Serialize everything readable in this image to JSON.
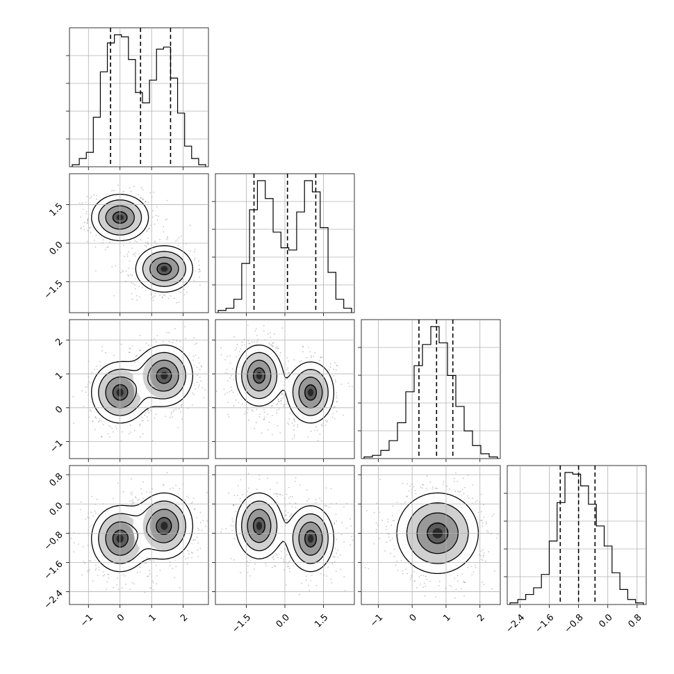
{
  "chart_data": {
    "type": "corner",
    "grid": true,
    "parameters": [
      {
        "range": [
          -1.6,
          2.8
        ],
        "ticks": [
          -1,
          0,
          1,
          2
        ],
        "tick_labels": [
          "−1",
          "0",
          "1",
          "2"
        ]
      },
      {
        "range": [
          -2.7,
          2.7
        ],
        "ticks": [
          -1.5,
          0.0,
          1.5
        ],
        "tick_labels": [
          "−1.5",
          "0.0",
          "1.5"
        ]
      },
      {
        "range": [
          -1.5,
          2.6
        ],
        "ticks": [
          -1,
          0,
          1,
          2
        ],
        "tick_labels": [
          "−1",
          "0",
          "1",
          "2"
        ]
      },
      {
        "range": [
          -2.75,
          1.05
        ],
        "ticks": [
          -2.4,
          -1.6,
          -0.8,
          0.0,
          0.8
        ],
        "tick_labels": [
          "−2.4",
          "−1.6",
          "−0.8",
          "0.0",
          "0.8"
        ]
      }
    ],
    "y_tick_labels_row": {
      "1": {
        "ticks": [
          -1.5,
          0.0,
          1.5
        ],
        "tick_labels": [
          "−1.5",
          "0.0",
          "1.5"
        ]
      },
      "2": {
        "ticks": [
          -1,
          0,
          1,
          2
        ],
        "tick_labels": [
          "−1",
          "0",
          "1",
          "2"
        ]
      },
      "3": {
        "ticks": [
          -2.4,
          -1.6,
          -0.8,
          0.0,
          0.8
        ],
        "tick_labels": [
          "−2.4",
          "−1.6",
          "−0.8",
          "0.0",
          "0.8"
        ]
      }
    },
    "histograms": [
      {
        "quantiles": [
          -0.3,
          0.65,
          1.6
        ],
        "counts": [
          1,
          4,
          7,
          24,
          46,
          60,
          64,
          63,
          52,
          36,
          31,
          42,
          57,
          58,
          43,
          26,
          10,
          4,
          1
        ]
      },
      {
        "quantiles": [
          -1.2,
          0.1,
          1.2
        ],
        "counts": [
          1,
          2,
          6,
          22,
          46,
          59,
          51,
          36,
          29,
          28,
          45,
          59,
          54,
          38,
          18,
          6,
          2
        ]
      },
      {
        "quantiles": [
          0.2,
          0.72,
          1.2
        ],
        "counts": [
          1,
          2,
          5,
          11,
          22,
          41,
          57,
          70,
          81,
          71,
          51,
          32,
          17,
          8,
          3,
          1
        ]
      },
      {
        "quantiles": [
          -1.3,
          -0.8,
          -0.35
        ],
        "counts": [
          1,
          3,
          6,
          10,
          18,
          38,
          61,
          79,
          78,
          71,
          60,
          47,
          35,
          19,
          9,
          3,
          1
        ]
      }
    ],
    "pairs": [
      {
        "row": 1,
        "col": 0,
        "clusters": [
          {
            "mean": [
              0.0,
              1.0
            ],
            "sd": [
              0.45,
              0.45
            ],
            "rho": 0
          },
          {
            "mean": [
              1.4,
              -1.0
            ],
            "sd": [
              0.45,
              0.45
            ],
            "rho": 0
          }
        ]
      },
      {
        "row": 2,
        "col": 0,
        "clusters": [
          {
            "mean": [
              0.0,
              0.45
            ],
            "sd": [
              0.45,
              0.45
            ],
            "rho": 0
          },
          {
            "mean": [
              1.4,
              0.95
            ],
            "sd": [
              0.45,
              0.45
            ],
            "rho": 0
          }
        ]
      },
      {
        "row": 2,
        "col": 1,
        "clusters": [
          {
            "mean": [
              -1.0,
              0.95
            ],
            "sd": [
              0.45,
              0.45
            ],
            "rho": 0
          },
          {
            "mean": [
              1.0,
              0.45
            ],
            "sd": [
              0.45,
              0.45
            ],
            "rho": 0
          }
        ]
      },
      {
        "row": 3,
        "col": 0,
        "clusters": [
          {
            "mean": [
              0.0,
              -0.95
            ],
            "sd": [
              0.45,
              0.45
            ],
            "rho": 0
          },
          {
            "mean": [
              1.4,
              -0.6
            ],
            "sd": [
              0.45,
              0.45
            ],
            "rho": 0
          }
        ]
      },
      {
        "row": 3,
        "col": 1,
        "clusters": [
          {
            "mean": [
              -1.0,
              -0.6
            ],
            "sd": [
              0.45,
              0.45
            ],
            "rho": 0
          },
          {
            "mean": [
              1.0,
              -0.95
            ],
            "sd": [
              0.45,
              0.45
            ],
            "rho": 0
          }
        ]
      },
      {
        "row": 3,
        "col": 2,
        "clusters": [
          {
            "mean": [
              0.75,
              -0.8
            ],
            "sd": [
              0.6,
              0.55
            ],
            "rho": 0
          }
        ]
      }
    ]
  }
}
